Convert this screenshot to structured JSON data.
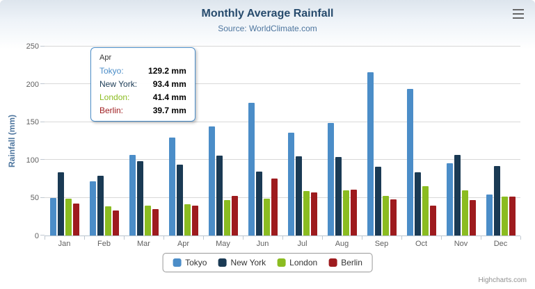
{
  "chart": {
    "title": "Monthly Average Rainfall",
    "subtitle": "Source: WorldClimate.com",
    "credits": "Highcharts.com",
    "export_menu_icon": "hamburger-icon"
  },
  "chart_data": {
    "type": "bar",
    "title": "Monthly Average Rainfall",
    "subtitle": "Source: WorldClimate.com",
    "categories": [
      "Jan",
      "Feb",
      "Mar",
      "Apr",
      "May",
      "Jun",
      "Jul",
      "Aug",
      "Sep",
      "Oct",
      "Nov",
      "Dec"
    ],
    "series": [
      {
        "name": "Tokyo",
        "color": "#4b8dc8",
        "values": [
          49.9,
          71.5,
          106.4,
          129.2,
          144.0,
          176.0,
          135.6,
          148.5,
          216.4,
          194.1,
          95.6,
          54.4
        ]
      },
      {
        "name": "New York",
        "color": "#1a3a54",
        "values": [
          83.6,
          78.8,
          98.5,
          93.4,
          106.0,
          84.5,
          105.0,
          104.3,
          91.2,
          83.5,
          106.6,
          92.3
        ]
      },
      {
        "name": "London",
        "color": "#8bbc21",
        "values": [
          48.9,
          38.8,
          39.3,
          41.4,
          47.0,
          48.3,
          59.0,
          59.6,
          52.4,
          65.2,
          59.3,
          51.2
        ]
      },
      {
        "name": "Berlin",
        "color": "#9e1b1e",
        "values": [
          42.4,
          33.2,
          34.5,
          39.7,
          52.6,
          75.5,
          57.4,
          60.4,
          47.6,
          39.1,
          46.8,
          51.1
        ]
      }
    ],
    "xlabel": "",
    "ylabel": "Rainfall (mm)",
    "ylim": [
      0,
      250
    ],
    "yticks": [
      0,
      50,
      100,
      150,
      200,
      250
    ],
    "grid": true,
    "legend_position": "bottom"
  },
  "tooltip": {
    "header": "Apr",
    "rows": [
      {
        "name": "Tokyo",
        "value": "129.2 mm"
      },
      {
        "name": "New York",
        "value": "93.4 mm"
      },
      {
        "name": "London",
        "value": "41.4 mm"
      },
      {
        "name": "Berlin",
        "value": "39.7 mm"
      }
    ]
  }
}
